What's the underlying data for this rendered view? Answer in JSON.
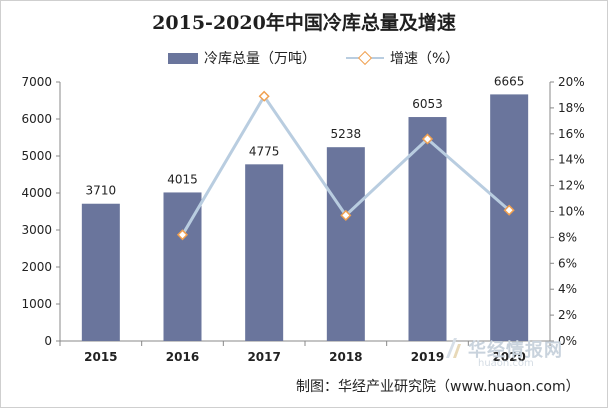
{
  "chart_data": {
    "type": "bar+line",
    "title": "2015-2020年中国冷库总量及增速",
    "categories": [
      "2015",
      "2016",
      "2017",
      "2018",
      "2019",
      "2020"
    ],
    "series": [
      {
        "name": "冷库总量（万吨）",
        "type": "bar",
        "axis": "left",
        "values": [
          3710,
          4015,
          4775,
          5238,
          6053,
          6665
        ],
        "data_labels": [
          "3710",
          "4015",
          "4775",
          "5238",
          "6053",
          "6665"
        ]
      },
      {
        "name": "增速（%）",
        "type": "line",
        "axis": "right",
        "values": [
          null,
          8.2,
          18.9,
          9.7,
          15.6,
          10.1
        ]
      }
    ],
    "y_left": {
      "range": [
        0,
        7000
      ],
      "ticks": [
        "0",
        "1000",
        "2000",
        "3000",
        "4000",
        "5000",
        "6000",
        "7000"
      ]
    },
    "y_right": {
      "range": [
        0,
        20
      ],
      "ticks": [
        "0%",
        "2%",
        "4%",
        "6%",
        "8%",
        "10%",
        "12%",
        "14%",
        "16%",
        "18%",
        "20%"
      ]
    },
    "legend": "top",
    "grid": false
  },
  "colors": {
    "bar": "#6a759c",
    "line": "#b9cde0",
    "marker_edge": "#f0a050"
  },
  "watermark": {
    "text": "华经情报网",
    "subtext": "huaon.com"
  },
  "source_note": "制图：华经产业研究院（www.huaon.com）"
}
